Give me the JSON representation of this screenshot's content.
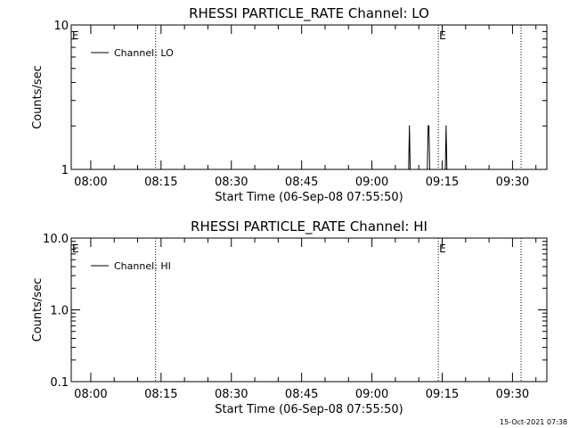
{
  "colors": {
    "background": "#ffffff",
    "foreground": "#000000"
  },
  "chart_data": [
    {
      "type": "line",
      "title": "RHESSI PARTICLE_RATE Channel: LO",
      "xlabel": "Start Time (06-Sep-08 07:55:50)",
      "ylabel": "Counts/sec",
      "yscale": "log",
      "ylim": [
        1,
        10
      ],
      "xlim": [
        "07:55:50",
        "09:37:20"
      ],
      "x_ticks": [
        "08:00",
        "08:15",
        "08:30",
        "08:45",
        "09:00",
        "09:15",
        "09:30"
      ],
      "y_ticks": [
        {
          "value": 1,
          "label": "1"
        },
        {
          "value": 10,
          "label": "10"
        }
      ],
      "legend": {
        "position": "top-left",
        "entries": [
          "Channel: LO"
        ]
      },
      "vertical_markers": [
        {
          "time": "08:13:50",
          "label": ""
        },
        {
          "time": "09:14:10",
          "label": "E"
        },
        {
          "time": "09:31:50",
          "label": ""
        }
      ],
      "start_marker_label": "E",
      "series": [
        {
          "name": "Channel: LO",
          "points": [
            [
              "09:07:50",
              1
            ],
            [
              "09:08:00",
              2
            ],
            [
              "09:08:10",
              1
            ],
            [
              "09:11:50",
              1
            ],
            [
              "09:12:00",
              2
            ],
            [
              "09:12:10",
              2
            ],
            [
              "09:12:20",
              1
            ],
            [
              "09:15:40",
              1
            ],
            [
              "09:15:50",
              2
            ],
            [
              "09:16:00",
              1
            ]
          ]
        }
      ]
    },
    {
      "type": "line",
      "title": "RHESSI PARTICLE_RATE Channel: HI",
      "xlabel": "Start Time (06-Sep-08 07:55:50)",
      "ylabel": "Counts/sec",
      "yscale": "log",
      "ylim": [
        0.1,
        10
      ],
      "xlim": [
        "07:55:50",
        "09:37:20"
      ],
      "x_ticks": [
        "08:00",
        "08:15",
        "08:30",
        "08:45",
        "09:00",
        "09:15",
        "09:30"
      ],
      "y_ticks": [
        {
          "value": 0.1,
          "label": "0.1"
        },
        {
          "value": 1,
          "label": "1.0"
        },
        {
          "value": 10,
          "label": "10.0"
        }
      ],
      "legend": {
        "position": "top-left",
        "entries": [
          "Channel: HI"
        ]
      },
      "vertical_markers": [
        {
          "time": "08:13:50",
          "label": ""
        },
        {
          "time": "09:14:10",
          "label": "E"
        },
        {
          "time": "09:31:50",
          "label": ""
        }
      ],
      "start_marker_label": "E",
      "series": [
        {
          "name": "Channel: HI",
          "points": []
        }
      ]
    }
  ],
  "footer": {
    "timestamp": "15-Oct-2021 07:38"
  }
}
